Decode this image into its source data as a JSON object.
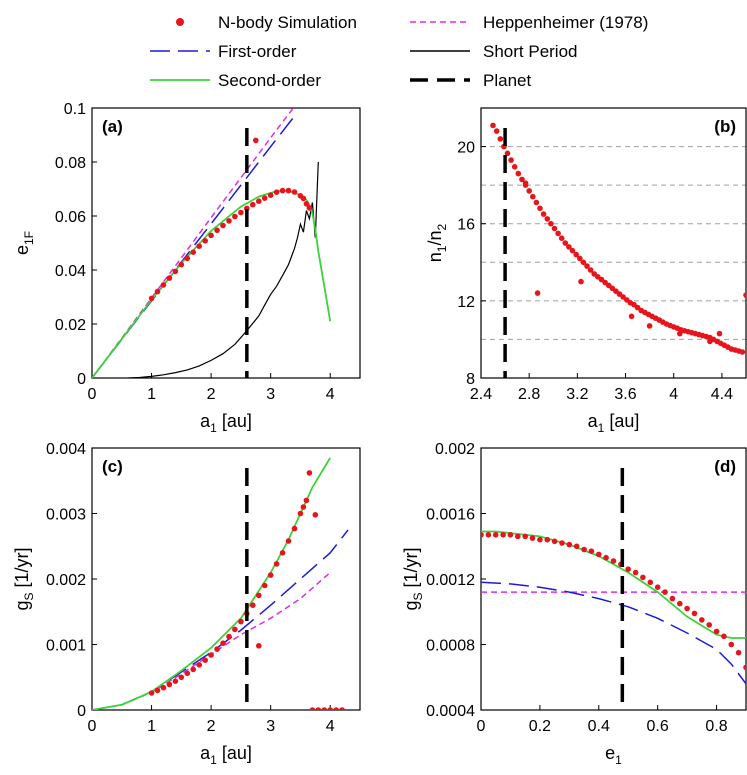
{
  "legend": {
    "entries": [
      {
        "key": "nbody",
        "label": "N-body Simulation",
        "color": "#e8141c",
        "style": "dot"
      },
      {
        "key": "hepp",
        "label": "Heppenheimer (1978)",
        "color": "#e22be2",
        "style": "dash-fine"
      },
      {
        "key": "first",
        "label": "First-order",
        "color": "#1c1cd8",
        "style": "dash-long"
      },
      {
        "key": "short",
        "label": "Short Period",
        "color": "#000000",
        "style": "solid-thin"
      },
      {
        "key": "second",
        "label": "Second-order",
        "color": "#3ad43a",
        "style": "solid"
      },
      {
        "key": "planet",
        "label": "Planet",
        "color": "#000000",
        "style": "dash-thick"
      }
    ]
  },
  "chart_data": [
    {
      "id": "a",
      "type": "line",
      "panel_label": "(a)",
      "xlabel": "a",
      "xlabel_sub": "1",
      "xlabel_suffix": " [au]",
      "ylabel": "e",
      "ylabel_sub": "1F",
      "xlim": [
        0,
        4.5
      ],
      "ylim": [
        0,
        0.1
      ],
      "xticks": [
        0,
        1,
        2,
        3,
        4
      ],
      "xtick_labels": [
        "0",
        "1",
        "2",
        "3",
        "4"
      ],
      "yticks": [
        0,
        0.02,
        0.04,
        0.06,
        0.08,
        0.1
      ],
      "ytick_labels": [
        "0",
        "0.02",
        "0.04",
        "0.06",
        "0.08",
        "0.1"
      ],
      "planet_x": 2.6,
      "series": {
        "hepp": {
          "x": [
            0,
            0.5,
            1,
            1.5,
            2,
            2.5,
            3,
            3.38
          ],
          "y": [
            0,
            0.0148,
            0.0297,
            0.0445,
            0.0594,
            0.0742,
            0.089,
            0.1
          ]
        },
        "first": {
          "x": [
            0,
            0.5,
            1,
            1.5,
            2,
            2.5,
            3,
            3.4
          ],
          "y": [
            0,
            0.0143,
            0.0286,
            0.0429,
            0.0571,
            0.0714,
            0.0857,
            0.097
          ]
        },
        "second": {
          "x": [
            0,
            0.5,
            1,
            1.5,
            2,
            2.5,
            2.8,
            3.1,
            3.3,
            3.5,
            3.6,
            3.65,
            3.7,
            3.75,
            3.8,
            3.9,
            4.0
          ],
          "y": [
            0,
            0.0145,
            0.029,
            0.0425,
            0.0545,
            0.0635,
            0.0672,
            0.0692,
            0.0693,
            0.0678,
            0.066,
            0.064,
            0.061,
            0.055,
            0.047,
            0.034,
            0.021
          ]
        },
        "short": {
          "x": [
            0.6,
            0.8,
            1,
            1.2,
            1.4,
            1.6,
            1.8,
            2,
            2.2,
            2.4,
            2.6,
            2.8,
            2.9,
            3,
            3.1,
            3.2,
            3.3,
            3.35,
            3.4,
            3.45,
            3.5,
            3.55,
            3.6,
            3.65,
            3.7,
            3.75,
            3.8
          ],
          "y": [
            0,
            0.0002,
            0.0006,
            0.0012,
            0.002,
            0.003,
            0.0045,
            0.0065,
            0.009,
            0.0125,
            0.0175,
            0.023,
            0.027,
            0.031,
            0.034,
            0.038,
            0.042,
            0.045,
            0.048,
            0.052,
            0.057,
            0.054,
            0.062,
            0.059,
            0.065,
            0.052,
            0.08
          ]
        },
        "nbody": {
          "x": [
            1,
            1.1,
            1.2,
            1.3,
            1.4,
            1.5,
            1.6,
            1.7,
            1.8,
            1.9,
            2,
            2.1,
            2.2,
            2.3,
            2.4,
            2.5,
            2.6,
            2.7,
            2.8,
            2.9,
            3,
            3.1,
            3.2,
            3.3,
            3.4,
            3.5,
            3.55,
            3.6,
            3.65,
            2.75
          ],
          "y": [
            0.0295,
            0.032,
            0.0345,
            0.037,
            0.0395,
            0.042,
            0.0443,
            0.0466,
            0.0488,
            0.0508,
            0.0528,
            0.0547,
            0.0565,
            0.0582,
            0.0598,
            0.0613,
            0.0628,
            0.0642,
            0.0655,
            0.0666,
            0.0677,
            0.0688,
            0.0694,
            0.0694,
            0.0689,
            0.0675,
            0.0665,
            0.0645,
            0.063,
            0.088
          ]
        }
      }
    },
    {
      "id": "b",
      "type": "scatter",
      "panel_label": "(b)",
      "xlabel": "a",
      "xlabel_sub": "1",
      "xlabel_suffix": " [au]",
      "ylabel": "n",
      "ylabel_sub": "1",
      "ylabel_mid": "/n",
      "ylabel_sub2": "2",
      "xlim": [
        2.4,
        4.6
      ],
      "ylim": [
        8,
        22
      ],
      "xticks": [
        2.4,
        2.8,
        3.2,
        3.6,
        4,
        4.4
      ],
      "xtick_labels": [
        "2.4",
        "2.8",
        "3.2",
        "3.6",
        "4",
        "4.4"
      ],
      "yticks": [
        8,
        12,
        16,
        20
      ],
      "ytick_labels": [
        "8",
        "12",
        "16",
        "20"
      ],
      "grid_y": [
        10,
        12,
        14,
        16,
        18,
        20
      ],
      "planet_x": 2.6,
      "series": {
        "nbody": {
          "x": [
            2.5,
            2.53,
            2.56,
            2.59,
            2.62,
            2.65,
            2.68,
            2.71,
            2.74,
            2.77,
            2.8,
            2.83,
            2.86,
            2.89,
            2.92,
            2.95,
            2.98,
            3.01,
            3.04,
            3.07,
            3.1,
            3.13,
            3.16,
            3.19,
            3.22,
            3.25,
            3.28,
            3.31,
            3.34,
            3.37,
            3.4,
            3.43,
            3.46,
            3.49,
            3.52,
            3.55,
            3.58,
            3.61,
            3.64,
            3.67,
            3.7,
            3.73,
            3.76,
            3.79,
            3.82,
            3.85,
            3.88,
            3.91,
            3.94,
            3.97,
            4.0,
            4.03,
            4.06,
            4.09,
            4.12,
            4.15,
            4.18,
            4.21,
            4.24,
            4.27,
            4.3,
            4.33,
            4.36,
            4.39,
            4.42,
            4.45,
            4.48,
            4.51,
            4.54,
            4.57,
            2.77,
            2.87,
            3.23,
            3.65,
            3.8,
            4.05,
            4.3,
            4.38,
            4.6
          ],
          "y": [
            21.1,
            20.8,
            20.4,
            20.0,
            19.65,
            19.3,
            18.95,
            18.6,
            18.3,
            18.0,
            17.7,
            17.4,
            17.1,
            16.8,
            16.5,
            16.25,
            16.0,
            15.75,
            15.5,
            15.25,
            15.0,
            14.8,
            14.6,
            14.4,
            14.2,
            14.0,
            13.8,
            13.6,
            13.4,
            13.25,
            13.1,
            12.95,
            12.8,
            12.65,
            12.5,
            12.35,
            12.2,
            12.05,
            11.9,
            11.8,
            11.65,
            11.5,
            11.4,
            11.3,
            11.2,
            11.1,
            11.0,
            10.9,
            10.8,
            10.72,
            10.65,
            10.58,
            10.5,
            10.45,
            10.4,
            10.35,
            10.3,
            10.25,
            10.2,
            10.15,
            10.1,
            10.0,
            9.9,
            9.8,
            9.7,
            9.6,
            9.5,
            9.45,
            9.4,
            9.35,
            18.1,
            12.4,
            13.0,
            11.2,
            10.7,
            10.3,
            9.9,
            10.3,
            12.3
          ]
        }
      }
    },
    {
      "id": "c",
      "type": "line",
      "panel_label": "(c)",
      "xlabel": "a",
      "xlabel_sub": "1",
      "xlabel_suffix": " [au]",
      "ylabel": "g",
      "ylabel_sub": "S",
      "ylabel_suffix": " [1/yr]",
      "xlim": [
        0,
        4.5
      ],
      "ylim": [
        0,
        0.004
      ],
      "xticks": [
        0,
        1,
        2,
        3,
        4
      ],
      "xtick_labels": [
        "0",
        "1",
        "2",
        "3",
        "4"
      ],
      "yticks": [
        0,
        0.001,
        0.002,
        0.003,
        0.004
      ],
      "ytick_labels": [
        "0",
        "0.001",
        "0.002",
        "0.003",
        "0.004"
      ],
      "planet_x": 2.6,
      "series": {
        "hepp": {
          "x": [
            0,
            0.5,
            1,
            1.5,
            2,
            2.5,
            3,
            3.5,
            4
          ],
          "y": [
            0,
            8e-05,
            0.00027,
            0.00055,
            0.00085,
            0.00115,
            0.0014,
            0.0017,
            0.0021
          ]
        },
        "first": {
          "x": [
            0,
            0.5,
            1,
            1.5,
            2,
            2.5,
            3,
            3.5,
            4,
            4.3
          ],
          "y": [
            0,
            8e-05,
            0.00028,
            0.00058,
            0.00088,
            0.00122,
            0.0016,
            0.002,
            0.0024,
            0.00275
          ]
        },
        "second": {
          "x": [
            0,
            0.5,
            1,
            1.5,
            2,
            2.5,
            3,
            3.3,
            3.5,
            3.7,
            3.9,
            4
          ],
          "y": [
            0,
            8e-05,
            0.00028,
            0.0006,
            0.00095,
            0.0014,
            0.0021,
            0.0026,
            0.003,
            0.0034,
            0.0037,
            0.00385
          ]
        },
        "nbody": {
          "x": [
            1,
            1.1,
            1.2,
            1.3,
            1.4,
            1.5,
            1.6,
            1.7,
            1.8,
            1.9,
            2,
            2.1,
            2.2,
            2.3,
            2.4,
            2.5,
            2.6,
            2.7,
            2.8,
            2.9,
            3,
            3.1,
            3.2,
            3.3,
            3.4,
            3.5,
            3.55,
            3.6,
            3.65,
            3.75,
            2.8,
            3.7,
            3.8,
            3.9,
            4.0,
            4.1,
            4.2
          ],
          "y": [
            0.00026,
            0.0003,
            0.00034,
            0.00039,
            0.00044,
            0.0005,
            0.00056,
            0.00062,
            0.00069,
            0.00076,
            0.00084,
            0.00093,
            0.00102,
            0.00112,
            0.00123,
            0.00135,
            0.00147,
            0.0016,
            0.00175,
            0.0019,
            0.00206,
            0.00223,
            0.0024,
            0.00258,
            0.00277,
            0.003,
            0.0031,
            0.0032,
            0.00362,
            0.00298,
            0.00098,
            0,
            0,
            0,
            0,
            0,
            0
          ]
        }
      }
    },
    {
      "id": "d",
      "type": "line",
      "panel_label": "(d)",
      "xlabel": "e",
      "xlabel_sub": "1",
      "xlabel_suffix": "",
      "ylabel": "g",
      "ylabel_sub": "S",
      "ylabel_suffix": " [1/yr]",
      "xlim": [
        0,
        0.9
      ],
      "ylim": [
        0.0004,
        0.002
      ],
      "xticks": [
        0,
        0.2,
        0.4,
        0.6,
        0.8
      ],
      "xtick_labels": [
        "0",
        "0.2",
        "0.4",
        "0.6",
        "0.8"
      ],
      "yticks": [
        0.0004,
        0.0008,
        0.0012,
        0.0016,
        0.002
      ],
      "ytick_labels": [
        "0.0004",
        "0.0008",
        "0.0012",
        "0.0016",
        "0.002"
      ],
      "planet_x": 0.48,
      "series": {
        "hepp": {
          "x": [
            0,
            0.9
          ],
          "y": [
            0.00112,
            0.00112
          ]
        },
        "first": {
          "x": [
            0,
            0.1,
            0.2,
            0.3,
            0.4,
            0.5,
            0.6,
            0.7,
            0.8,
            0.85,
            0.9
          ],
          "y": [
            0.00118,
            0.00117,
            0.00115,
            0.00112,
            0.00108,
            0.00103,
            0.00096,
            0.00087,
            0.00077,
            0.00068,
            0.00056
          ]
        },
        "second": {
          "x": [
            0,
            0.05,
            0.1,
            0.2,
            0.3,
            0.4,
            0.5,
            0.6,
            0.7,
            0.8,
            0.85,
            0.9
          ],
          "y": [
            0.00149,
            0.00149,
            0.00148,
            0.00146,
            0.00141,
            0.00134,
            0.00124,
            0.00112,
            0.00097,
            0.00086,
            0.00084,
            0.00084
          ]
        },
        "nbody": {
          "x": [
            0,
            0.025,
            0.05,
            0.075,
            0.1,
            0.125,
            0.15,
            0.175,
            0.2,
            0.225,
            0.25,
            0.275,
            0.3,
            0.325,
            0.35,
            0.375,
            0.4,
            0.425,
            0.45,
            0.475,
            0.5,
            0.525,
            0.55,
            0.575,
            0.6,
            0.625,
            0.65,
            0.675,
            0.7,
            0.725,
            0.75,
            0.775,
            0.8,
            0.825,
            0.85,
            0.875,
            0.9
          ],
          "y": [
            0.00147,
            0.00147,
            0.00147,
            0.00147,
            0.00147,
            0.00146,
            0.00146,
            0.00145,
            0.00144,
            0.00144,
            0.00143,
            0.00142,
            0.00141,
            0.0014,
            0.00138,
            0.00137,
            0.00135,
            0.00133,
            0.00131,
            0.00129,
            0.00126,
            0.00124,
            0.00121,
            0.00118,
            0.00115,
            0.00112,
            0.00108,
            0.00105,
            0.00102,
            0.00099,
            0.00095,
            0.00092,
            0.00088,
            0.00085,
            0.0008,
            0.00075,
            0.00066
          ]
        }
      }
    }
  ]
}
